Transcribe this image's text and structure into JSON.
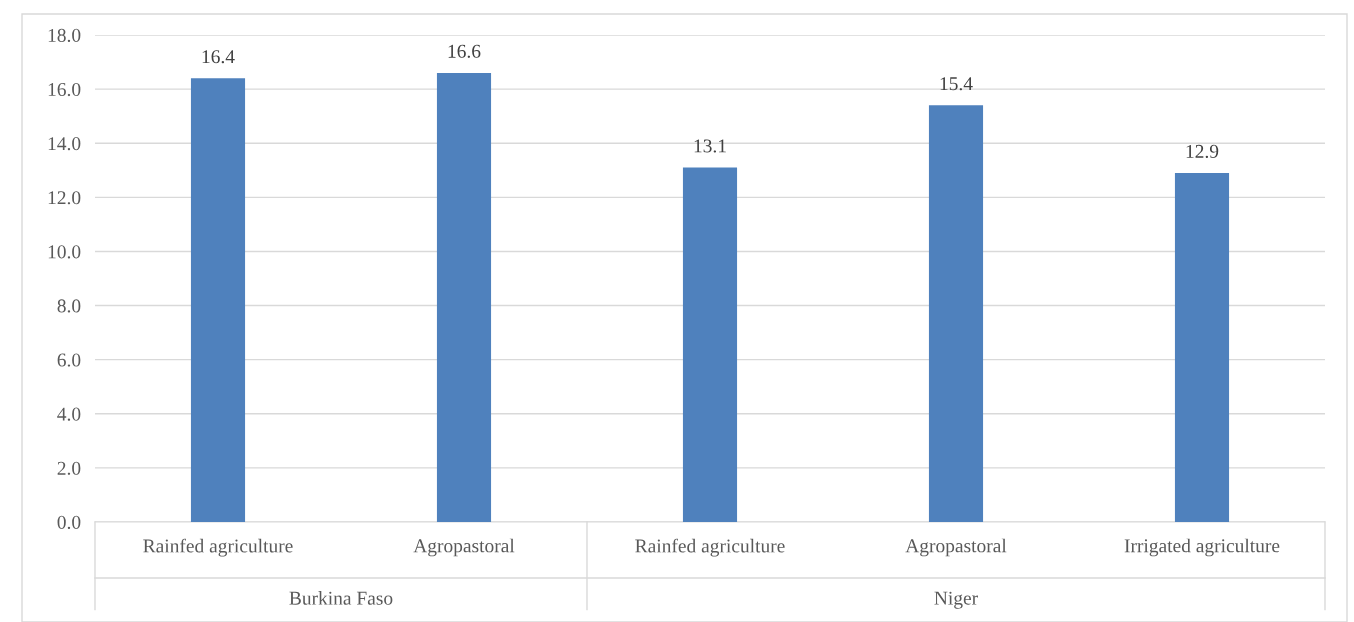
{
  "chart_data": {
    "type": "bar",
    "categories": [
      "Rainfed agriculture",
      "Agropastoral",
      "Rainfed agriculture",
      "Agropastoral",
      "Irrigated agriculture"
    ],
    "values": [
      16.4,
      16.6,
      13.1,
      15.4,
      12.9
    ],
    "color": "#4f81bd",
    "ylim": [
      0,
      18
    ],
    "yticks": [
      {
        "value": 0,
        "label": "0.0"
      },
      {
        "value": 2,
        "label": "2.0"
      },
      {
        "value": 4,
        "label": "4.0"
      },
      {
        "value": 6,
        "label": "6.0"
      },
      {
        "value": 8,
        "label": "8.0"
      },
      {
        "value": 10,
        "label": "10.0"
      },
      {
        "value": 12,
        "label": "12.0"
      },
      {
        "value": 14,
        "label": "14.0"
      },
      {
        "value": 16,
        "label": "16.0"
      },
      {
        "value": 18,
        "label": "18.0"
      }
    ],
    "grid": "y",
    "data_labels": true,
    "annotations": [
      "Burkina Faso",
      "Niger"
    ]
  }
}
